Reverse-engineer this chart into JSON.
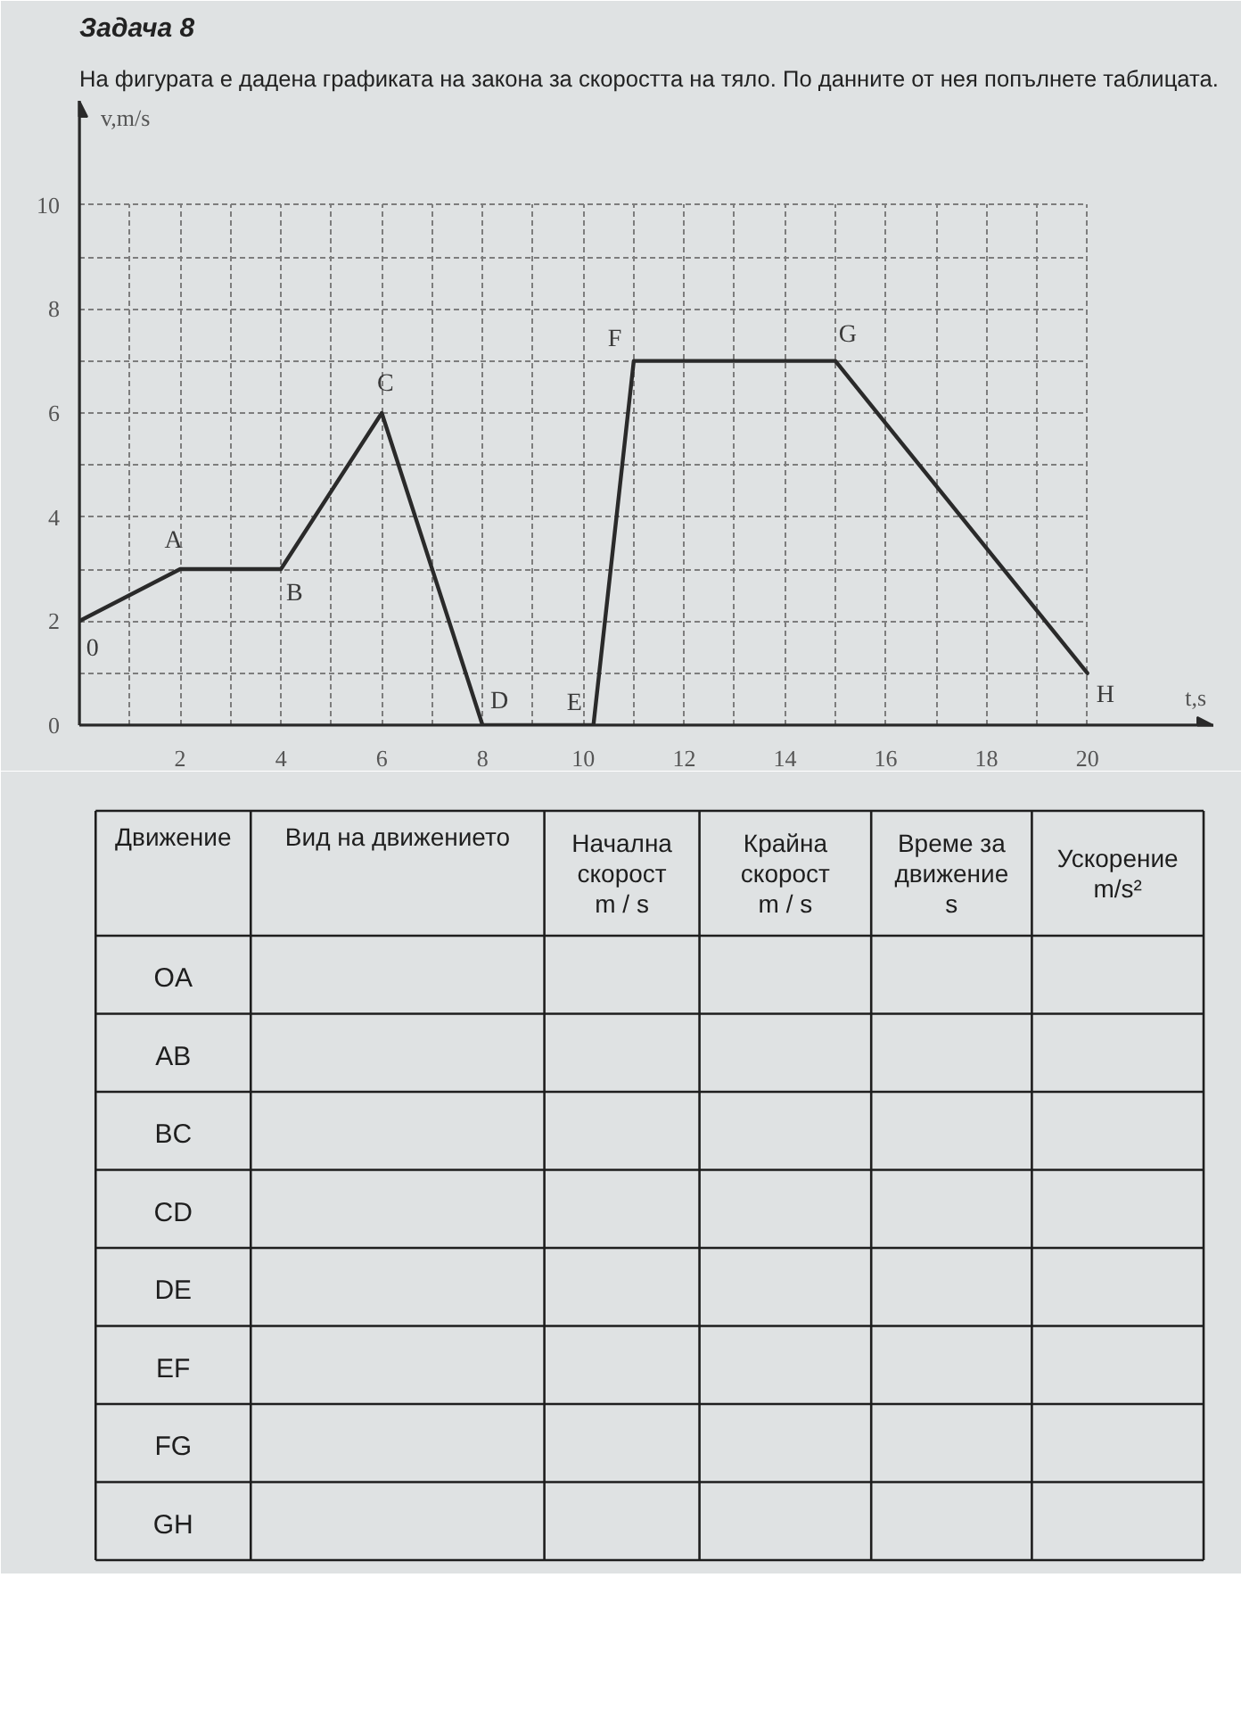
{
  "chart_data": [
    {
      "type": "line",
      "title": "Задача 8",
      "subtitle": "На фигурата е дадена графиката на закона за скоростта на тяло. По данните от нея попълнете таблицата.",
      "xlabel": "t,s",
      "ylabel": "v,m/s",
      "x": [
        0,
        2,
        4,
        6,
        8,
        10.2,
        11,
        15,
        20
      ],
      "values": [
        2,
        3,
        3,
        6,
        0,
        0,
        7,
        7,
        1
      ],
      "color": "#2a2a2a",
      "marker": "none",
      "line_style": "solid",
      "grid": true,
      "xlim": [
        0,
        22.5
      ],
      "ylim": [
        0,
        12
      ],
      "xticks": [
        {
          "value": 1,
          "label": null
        },
        2,
        {
          "value": 3,
          "label": null
        },
        4,
        {
          "value": 5,
          "label": null
        },
        6,
        {
          "value": 7,
          "label": null
        },
        8,
        {
          "value": 9,
          "label": null
        },
        10,
        {
          "value": 11,
          "label": null
        },
        12,
        {
          "value": 13,
          "label": null
        },
        14,
        {
          "value": 15,
          "label": null
        },
        16,
        {
          "value": 17,
          "label": null
        },
        18,
        {
          "value": 19,
          "label": null
        },
        20
      ],
      "yticks": [
        0,
        {
          "value": 1,
          "label": null
        },
        2,
        {
          "value": 3,
          "label": null
        },
        4,
        {
          "value": 5,
          "label": null
        },
        6,
        {
          "value": 7,
          "label": null
        },
        8,
        {
          "value": 9,
          "label": null
        },
        10
      ],
      "annotations": [
        {
          "text": "0",
          "x": 0,
          "y": 2
        },
        {
          "text": "A",
          "x": 2,
          "y": 3
        },
        {
          "text": "B",
          "x": 4,
          "y": 3
        },
        {
          "text": "C",
          "x": 6,
          "y": 6
        },
        {
          "text": "D",
          "x": 8,
          "y": 0
        },
        {
          "text": "E",
          "x": 10.2,
          "y": 0
        },
        {
          "text": "F",
          "x": 11,
          "y": 7
        },
        {
          "text": "G",
          "x": 15,
          "y": 7
        },
        {
          "text": "H",
          "x": 20,
          "y": 1
        }
      ]
    },
    {
      "type": "other",
      "categories": [
        "Движение",
        "Вид на движението",
        "Начална скорост m / s",
        "Крайна скорост m / s",
        "Време за движение s",
        "Ускорение m/s²"
      ],
      "y_categories": [
        "OA",
        "AB",
        "BC",
        "CD",
        "DE",
        "EF",
        "FG",
        "GH"
      ]
    }
  ]
}
